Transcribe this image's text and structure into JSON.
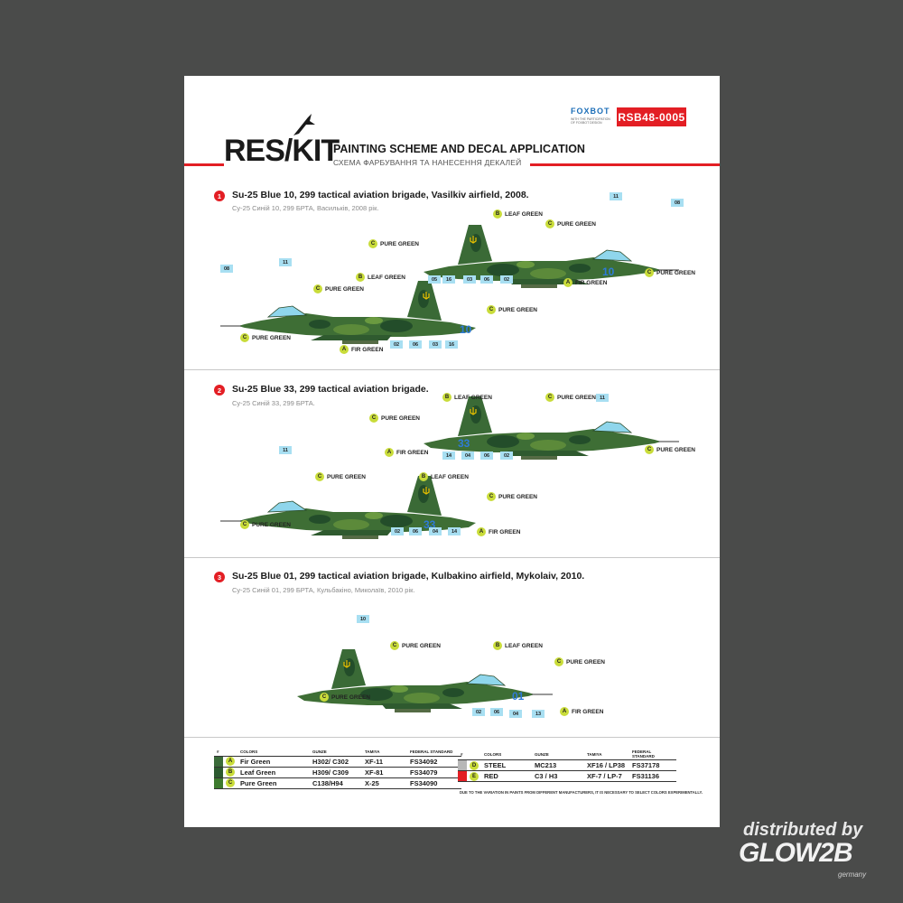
{
  "header": {
    "logo_left": "RES",
    "logo_slash": "/",
    "logo_right": "KIT",
    "title": "PAINTING SCHEME AND DECAL APPLICATION",
    "subtitle": "СХЕМА ФАРБУВАННЯ ТА НАНЕСЕННЯ ДЕКАЛЕЙ",
    "foxbot": "FOXBOT",
    "foxbot_note": "WITH THE PARTICIPATION OF FOXBOT DESIGN",
    "code": "RSB48-0005"
  },
  "sections": [
    {
      "num": "1",
      "title": "Su-25 Blue 10, 299 tactical aviation brigade, Vasilkiv airfield, 2008.",
      "subtitle": "Су-25 Синій 10, 299 БРТА, Васильків, 2008 рік.",
      "side_number": "10"
    },
    {
      "num": "2",
      "title": "Su-25 Blue 33, 299 tactical aviation brigade.",
      "subtitle": "Су-25 Синій 33, 299 БРТА.",
      "side_number": "33"
    },
    {
      "num": "3",
      "title": "Su-25 Blue 01, 299 tactical aviation brigade, Kulbakino airfield, Mykolaiv, 2010.",
      "subtitle": "Су-25 Синій 01, 299 БРТА, Кульбакіно, Миколаїв, 2010 рік.",
      "side_number": "01"
    }
  ],
  "colors": {
    "a": {
      "code": "A",
      "name": "FIR GREEN"
    },
    "b": {
      "code": "B",
      "name": "LEAF GREEN"
    },
    "c": {
      "code": "C",
      "name": "PURE GREEN"
    }
  },
  "decals": {
    "d02": "02",
    "d03": "03",
    "d04": "04",
    "d05": "05",
    "d06": "06",
    "d08": "08",
    "d10": "10",
    "d11": "11",
    "d13": "13",
    "d14": "14",
    "d16": "16"
  },
  "legend_left": {
    "headers": [
      "#",
      "COLORS",
      "GUNZE",
      "TAMIYA",
      "FEDERAL STANDARD"
    ],
    "rows": [
      {
        "swatch": "#3b6b3a",
        "code": "A",
        "name": "Fir Green",
        "gunze": "H302/ C302",
        "tamiya": "XF-11",
        "fs": "FS34092"
      },
      {
        "swatch": "#2c5a2f",
        "code": "B",
        "name": "Leaf Green",
        "gunze": "H309/ C309",
        "tamiya": "XF-81",
        "fs": "FS34079"
      },
      {
        "swatch": "#3d7a2e",
        "code": "C",
        "name": "Pure Green",
        "gunze": "C138/H94",
        "tamiya": "X-25",
        "fs": "FS34090"
      }
    ]
  },
  "legend_right": {
    "headers": [
      "#",
      "COLORS",
      "GUNZE",
      "TAMIYA",
      "FEDERAL STANDARD"
    ],
    "rows": [
      {
        "swatch": "#b7b7b7",
        "code": "D",
        "name": "STEEL",
        "gunze": "MC213",
        "tamiya": "XF16 / LP38",
        "fs": "FS37178"
      },
      {
        "swatch": "#e31e24",
        "code": "E",
        "name": "RED",
        "gunze": "C3 / H3",
        "tamiya": "XF-7 / LP-7",
        "fs": "FS31136"
      }
    ]
  },
  "note": "DUE TO THE VARIATION IN PAINTS FROM DIFFERENT MANUFACTURERS, IT IS NECESSARY TO SELECT COLORS EXPERIMENTALLY.",
  "watermark": {
    "line1": "distributed by",
    "line2": "GLOW2B",
    "line3": "germany"
  }
}
